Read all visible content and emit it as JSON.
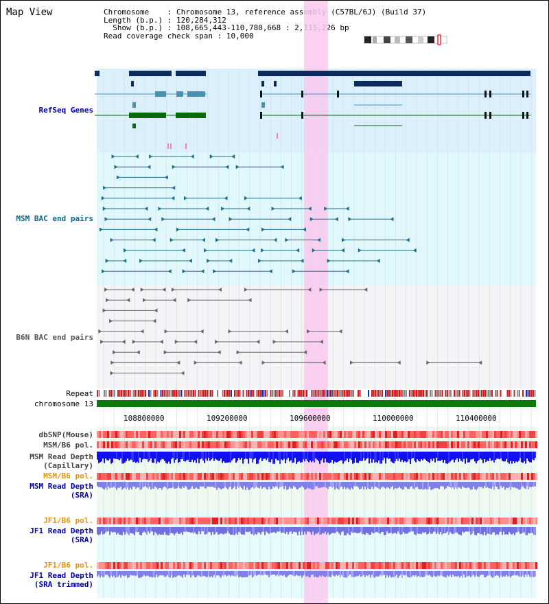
{
  "view": {
    "title": "Map View",
    "info": {
      "chromosome_key": "Chromosome",
      "chromosome_val": "Chromosome 13, reference assembly (C57BL/6J) (Build 37)",
      "length_key": "Length (b.p.)",
      "length_val": "120,284,312",
      "show_key": "Show (b.p.)",
      "show_val": "108,665,443-110,780,668 : 2,115,226 bp",
      "coverage_key": "Read coverage check span",
      "coverage_val": "10,000"
    }
  },
  "tracks": {
    "refseq": "RefSeq Genes",
    "msm_bac": "MSM BAC end pairs",
    "b6n_bac": "B6N BAC end pairs",
    "repeat": "Repeat",
    "chromosome": "chromosome 13",
    "dbsnp": "dbSNP(Mouse)",
    "msm_b6_pol_1": "MSM/B6 pol.",
    "msm_depth_cap_1": "MSM Read Depth",
    "msm_depth_cap_2": "(Capillary)",
    "msm_b6_pol_2": "MSM/B6 pol.",
    "msm_depth_sra_1": "MSM Read Depth",
    "msm_depth_sra_2": "(SRA)",
    "jf1_b6_pol_1": "JF1/B6 pol.",
    "jf1_depth_sra_1": "JF1 Read Depth",
    "jf1_depth_sra_2": "(SRA)",
    "jf1_b6_pol_2": "JF1/B6 pol.",
    "jf1_depth_trim_1": "JF1 Read Depth",
    "jf1_depth_trim_2": "(SRA trimmed)"
  },
  "axis": {
    "ticks": [
      "108800000",
      "109200000",
      "109600000",
      "110000000",
      "110400000"
    ]
  },
  "colors": {
    "refseq_dark": "#0b2a5e",
    "refseq_teal": "#4a90b0",
    "refseq_green": "#0a6a0a",
    "msm_pair": "#1f6f8b",
    "b6n_pair": "#666666",
    "highlight": "#f9c9ef",
    "chrom_bar": "#0a7a0a",
    "label_blue": "#0000aa",
    "label_orange": "#e69500",
    "label_teal": "#0a6a8a"
  }
}
